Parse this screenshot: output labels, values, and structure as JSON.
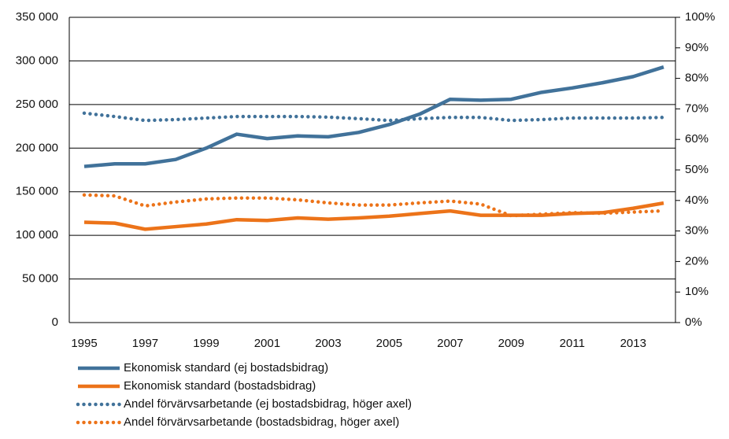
{
  "chart_data": {
    "type": "line",
    "categories": [
      "1995",
      null,
      "1997",
      null,
      "1999",
      null,
      "2001",
      null,
      "2003",
      null,
      "2005",
      null,
      "2007",
      null,
      "2009",
      null,
      "2011",
      null,
      "2013",
      null
    ],
    "ylim": [
      0,
      350000
    ],
    "yticks": [
      {
        "value": 0,
        "label": "0"
      },
      {
        "value": 50000,
        "label": "50 000"
      },
      {
        "value": 100000,
        "label": "100 000"
      },
      {
        "value": 150000,
        "label": "150 000"
      },
      {
        "value": 200000,
        "label": "200 000"
      },
      {
        "value": 250000,
        "label": "250 000"
      },
      {
        "value": 300000,
        "label": "300 000"
      },
      {
        "value": 350000,
        "label": "350 000"
      }
    ],
    "y2lim": [
      0,
      100
    ],
    "y2ticks": [
      {
        "value": 0,
        "label": "0%"
      },
      {
        "value": 10,
        "label": "10%"
      },
      {
        "value": 20,
        "label": "20%"
      },
      {
        "value": 30,
        "label": "30%"
      },
      {
        "value": 40,
        "label": "40%"
      },
      {
        "value": 50,
        "label": "50%"
      },
      {
        "value": 60,
        "label": "60%"
      },
      {
        "value": 70,
        "label": "70%"
      },
      {
        "value": 80,
        "label": "80%"
      },
      {
        "value": 90,
        "label": "90%"
      },
      {
        "value": 100,
        "label": "100%"
      }
    ],
    "grid": true,
    "legend": "bottom",
    "series": [
      {
        "name": "Ekonomisk standard (ej bostadsbidrag)",
        "color": "#41729a",
        "style": "solid",
        "values": [
          179000,
          182000,
          182000,
          187000,
          200000,
          216000,
          211000,
          214000,
          213000,
          218000,
          227000,
          239000,
          256000,
          255000,
          256000,
          264000,
          269000,
          275000,
          282000,
          293000
        ]
      },
      {
        "name": "Ekonomisk standard (bostadsbidrag)",
        "color": "#ec7319",
        "style": "solid",
        "values": [
          115000,
          114000,
          107000,
          110000,
          113000,
          118000,
          117000,
          120000,
          118500,
          120000,
          122000,
          125000,
          128000,
          123000,
          123000,
          123000,
          125000,
          126000,
          131000,
          137000
        ]
      },
      {
        "name": "Andel förvärvsarbetande (ej bostadsbidrag, höger axel)",
        "color": "#41729a",
        "style": "dotted",
        "axis": "y2",
        "values": [
          68.6,
          67.5,
          66.2,
          66.5,
          67,
          67.5,
          67.5,
          67.5,
          67.3,
          66.8,
          66.2,
          66.8,
          67.2,
          67.2,
          66.2,
          66.5,
          67,
          67,
          67,
          67.2
        ]
      },
      {
        "name": "Andel förvärvsarbetande (bostadsbidrag, höger axel)",
        "color": "#ec7319",
        "style": "dotted",
        "axis": "y2",
        "values": [
          41.8,
          41.5,
          38.2,
          39.5,
          40.5,
          40.8,
          40.8,
          40.2,
          39.2,
          38.5,
          38.5,
          39.2,
          39.8,
          38.8,
          35,
          35.5,
          36,
          35.8,
          36.2,
          36.6
        ]
      }
    ]
  }
}
